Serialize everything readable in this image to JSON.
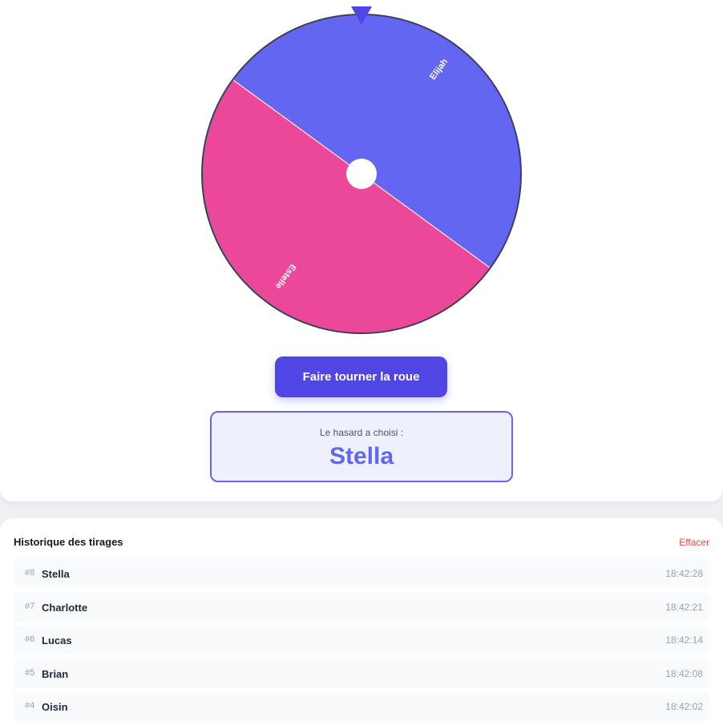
{
  "wheel": {
    "segments": [
      {
        "label": "Elijah",
        "color": "#6366f1"
      },
      {
        "label": "Estelle",
        "color": "#ec4899"
      }
    ]
  },
  "button": {
    "label": "Faire tourner la roue"
  },
  "result": {
    "caption": "Le hasard a choisi :",
    "winner": "Stella"
  },
  "history": {
    "title": "Historique des tirages",
    "clear": "Effacer",
    "entries": [
      {
        "index": "#8",
        "name": "Stella",
        "time": "18:42:28"
      },
      {
        "index": "#7",
        "name": "Charlotte",
        "time": "18:42:21"
      },
      {
        "index": "#6",
        "name": "Lucas",
        "time": "18:42:14"
      },
      {
        "index": "#5",
        "name": "Brian",
        "time": "18:42:08"
      },
      {
        "index": "#4",
        "name": "Oisin",
        "time": "18:42:02"
      }
    ]
  }
}
